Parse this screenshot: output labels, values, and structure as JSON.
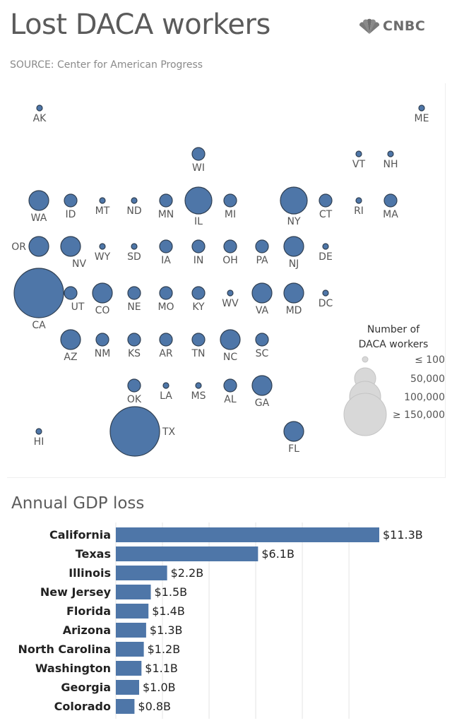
{
  "header": {
    "title": "Lost DACA workers",
    "logo_text": "CNBC",
    "source": "SOURCE: Center for American Progress"
  },
  "colors": {
    "bubble_fill": "#4e76a8",
    "bubble_stroke": "#2f3f52",
    "bar_fill": "#4e76a8",
    "legend_fill": "#d8d8d8"
  },
  "chart_data": [
    {
      "type": "scatter",
      "size_encoding": "Number of DACA workers",
      "states": [
        {
          "code": "AK",
          "level": 1
        },
        {
          "code": "ME",
          "level": 1
        },
        {
          "code": "WI",
          "level": 2
        },
        {
          "code": "VT",
          "level": 1
        },
        {
          "code": "NH",
          "level": 1
        },
        {
          "code": "WA",
          "level": 3
        },
        {
          "code": "ID",
          "level": 2
        },
        {
          "code": "MT",
          "level": 1
        },
        {
          "code": "ND",
          "level": 1
        },
        {
          "code": "MN",
          "level": 2
        },
        {
          "code": "IL",
          "level": 4
        },
        {
          "code": "MI",
          "level": 2
        },
        {
          "code": "NY",
          "level": 4
        },
        {
          "code": "CT",
          "level": 2
        },
        {
          "code": "RI",
          "level": 1
        },
        {
          "code": "MA",
          "level": 2
        },
        {
          "code": "OR",
          "level": 3
        },
        {
          "code": "NV",
          "level": 3
        },
        {
          "code": "WY",
          "level": 1
        },
        {
          "code": "SD",
          "level": 1
        },
        {
          "code": "IA",
          "level": 2
        },
        {
          "code": "IN",
          "level": 2
        },
        {
          "code": "OH",
          "level": 2
        },
        {
          "code": "PA",
          "level": 2
        },
        {
          "code": "NJ",
          "level": 3
        },
        {
          "code": "DE",
          "level": 1
        },
        {
          "code": "CA",
          "level": 5
        },
        {
          "code": "UT",
          "level": 2
        },
        {
          "code": "CO",
          "level": 3
        },
        {
          "code": "NE",
          "level": 2
        },
        {
          "code": "MO",
          "level": 2
        },
        {
          "code": "KY",
          "level": 2
        },
        {
          "code": "WV",
          "level": 1
        },
        {
          "code": "VA",
          "level": 3
        },
        {
          "code": "MD",
          "level": 3
        },
        {
          "code": "DC",
          "level": 1
        },
        {
          "code": "AZ",
          "level": 3
        },
        {
          "code": "NM",
          "level": 2
        },
        {
          "code": "KS",
          "level": 2
        },
        {
          "code": "AR",
          "level": 2
        },
        {
          "code": "TN",
          "level": 2
        },
        {
          "code": "NC",
          "level": 3
        },
        {
          "code": "SC",
          "level": 2
        },
        {
          "code": "OK",
          "level": 2
        },
        {
          "code": "LA",
          "level": 1
        },
        {
          "code": "MS",
          "level": 1
        },
        {
          "code": "AL",
          "level": 2
        },
        {
          "code": "GA",
          "level": 3
        },
        {
          "code": "HI",
          "level": 1
        },
        {
          "code": "TX",
          "level": 5
        },
        {
          "code": "FL",
          "level": 3
        }
      ],
      "legend": {
        "title_line1": "Number of",
        "title_line2": "DACA workers",
        "entries": [
          "≤ 100",
          "50,000",
          "100,000",
          "≥ 150,000"
        ]
      }
    },
    {
      "type": "bar",
      "title": "Annual GDP loss",
      "orientation": "horizontal",
      "categories": [
        "California",
        "Texas",
        "Illinois",
        "New Jersey",
        "Florida",
        "Arizona",
        "North Carolina",
        "Washington",
        "Georgia",
        "Colorado"
      ],
      "values": [
        11.3,
        6.1,
        2.2,
        1.5,
        1.4,
        1.3,
        1.2,
        1.1,
        1.0,
        0.8
      ],
      "value_labels": [
        "$11.3B",
        "$6.1B",
        "$2.2B",
        "$1.5B",
        "$1.4B",
        "$1.3B",
        "$1.2B",
        "$1.1B",
        "$1.0B",
        "$0.8B"
      ],
      "xlim": [
        0,
        11.3
      ],
      "grid": true
    }
  ]
}
